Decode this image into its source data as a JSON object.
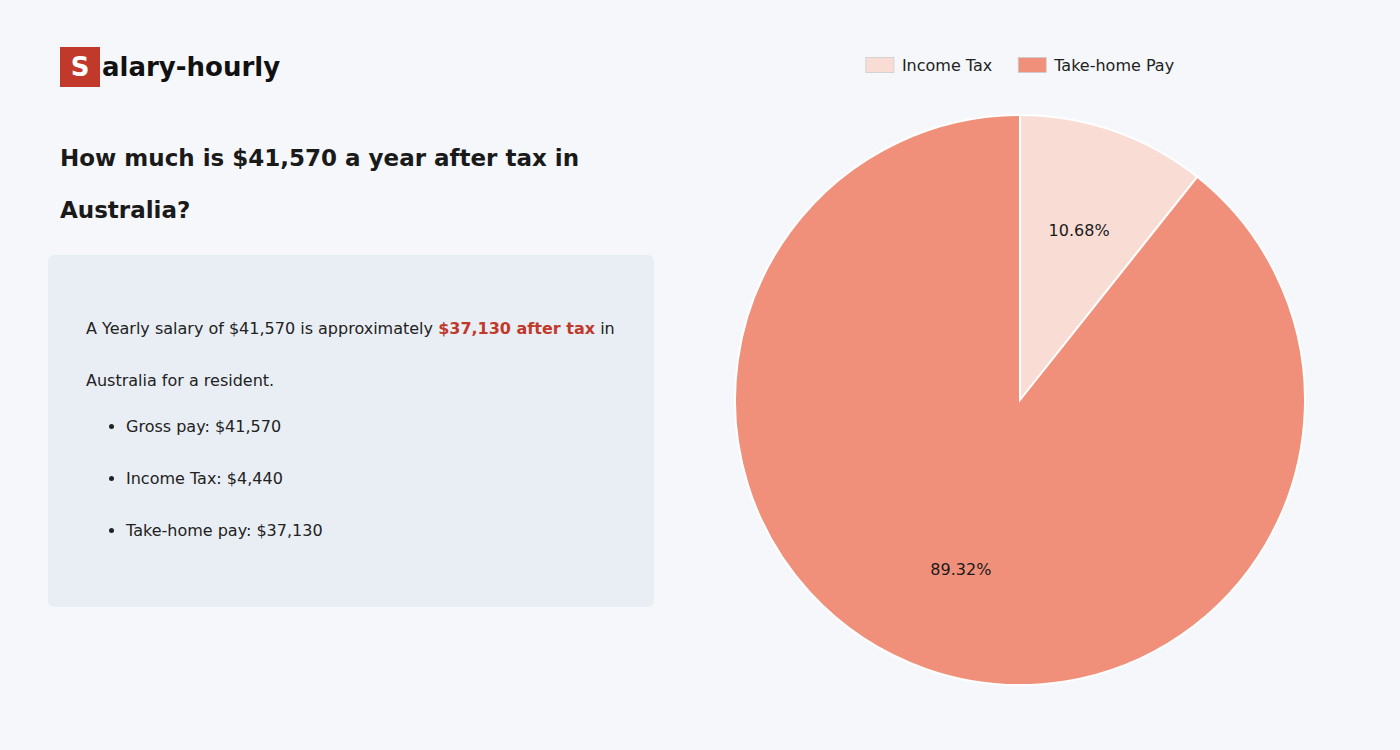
{
  "chart_data": {
    "type": "pie",
    "title": [
      "How much is $41,570 a year after tax in",
      "Australia?"
    ],
    "annotations": [
      {
        "text": "S",
        "color": "#c0392b"
      },
      {
        "text": "alary-hourly"
      },
      {
        "text": "A Yearly salary of $41,570 is approximately "
      },
      {
        "text": "$37,130 after tax",
        "color": "#c0392b"
      },
      {
        "text": " in"
      },
      {
        "text": "Australia for a resident."
      },
      {
        "text": "Gross pay: $41,570"
      },
      {
        "text": "Income Tax: $4,440"
      },
      {
        "text": "Take-home pay: $37,130"
      }
    ],
    "categories": [
      "Income Tax",
      "Take-home Pay"
    ],
    "values": [
      10.68,
      89.32
    ],
    "value_labels": [
      "10.68%",
      "89.32%"
    ],
    "colors": [
      "#f9ddd5",
      "#f0907a"
    ],
    "data_labels": true,
    "legend": "top"
  }
}
